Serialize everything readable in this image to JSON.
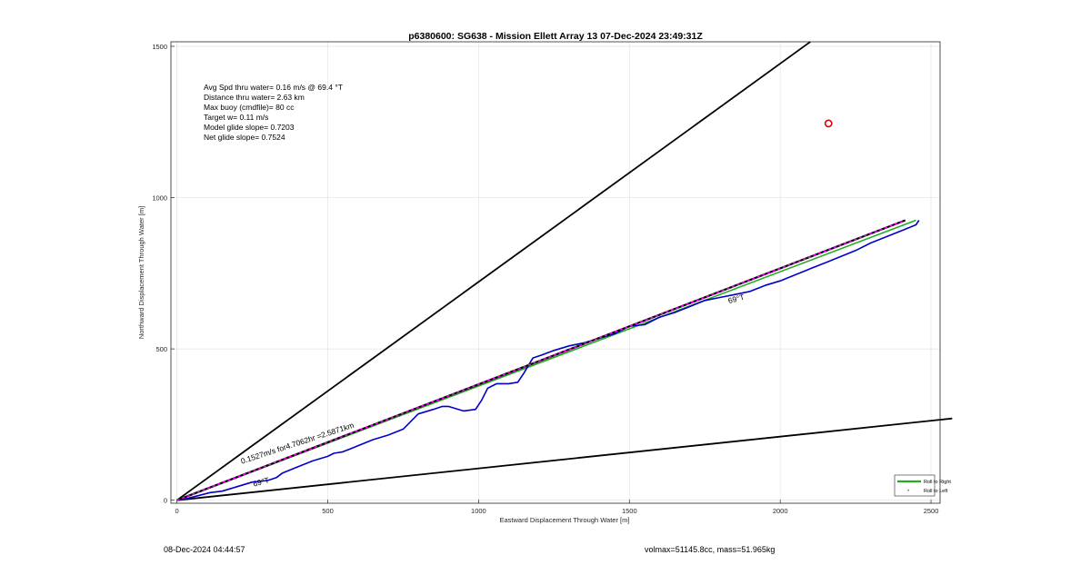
{
  "chart_data": {
    "type": "line",
    "title": "p6380600: SG638 - Mission Ellett Array 13 07-Dec-2024 23:49:31Z",
    "xlabel": "Eastward Displacement Through Water [m]",
    "ylabel": "Northward Displacement Through Water [m]",
    "xlim": [
      -20,
      2530
    ],
    "ylim": [
      -10,
      1515
    ],
    "xticks": [
      0,
      500,
      1000,
      1500,
      2000,
      2500
    ],
    "yticks": [
      0,
      500,
      1000,
      1500
    ],
    "grid": true,
    "legend": {
      "placement": "bottom-right",
      "entries": [
        "Roll to Right",
        "Roll to Left"
      ]
    },
    "stats_lines": [
      "Avg Spd thru water=  0.16 m/s @  69.4 °T",
      "Distance thru water=  2.63 km",
      "Max buoy (cmdfile)= 80 cc",
      "Target w= 0.11 m/s",
      "Model glide slope= 0.7203",
      "Net glide slope= 0.7524"
    ],
    "annotations": [
      {
        "text": "0.1527m/s for4.7062hr =2.5871km",
        "x": 215,
        "y": 120,
        "angle_deg": 18
      },
      {
        "text": "69°T",
        "x": 255,
        "y": 45,
        "angle_deg": 15
      },
      {
        "text": "69°T",
        "x": 1830,
        "y": 650,
        "angle_deg": 15
      }
    ],
    "series": [
      {
        "name": "Roll to Right",
        "color": "#22aa22",
        "x": [
          0,
          2450
        ],
        "y": [
          0,
          925
        ]
      },
      {
        "color": "#0000cc",
        "x": [
          0,
          30,
          70,
          110,
          150,
          200,
          250,
          300,
          330,
          350,
          400,
          450,
          500,
          520,
          550,
          600,
          650,
          700,
          750,
          800,
          850,
          880,
          900,
          950,
          990,
          1010,
          1030,
          1060,
          1100,
          1130,
          1150,
          1180,
          1210,
          1250,
          1300,
          1350,
          1400,
          1450,
          1480,
          1500,
          1550,
          1600,
          1650,
          1700,
          1750,
          1800,
          1850,
          1900,
          1950,
          2000,
          2050,
          2100,
          2150,
          2200,
          2250,
          2300,
          2350,
          2400,
          2450,
          2460
        ],
        "y": [
          0,
          5,
          15,
          25,
          30,
          45,
          60,
          65,
          75,
          90,
          110,
          130,
          145,
          155,
          160,
          180,
          200,
          215,
          235,
          285,
          300,
          310,
          310,
          295,
          300,
          330,
          370,
          385,
          385,
          390,
          420,
          470,
          480,
          495,
          510,
          520,
          535,
          550,
          565,
          575,
          580,
          605,
          620,
          640,
          660,
          670,
          680,
          690,
          710,
          725,
          745,
          765,
          785,
          805,
          825,
          850,
          870,
          890,
          910,
          925
        ]
      },
      {
        "name": "Roll to Left",
        "color": "#ff00ff",
        "dashed": true,
        "x": [
          0,
          2415
        ],
        "y": [
          0,
          925
        ]
      },
      {
        "color": "#000000",
        "x": [
          0,
          2100
        ],
        "y": [
          0,
          1515
        ]
      },
      {
        "color": "#000000",
        "x": [
          0,
          2570
        ],
        "y": [
          0,
          270
        ]
      }
    ],
    "marker": {
      "x": 2160,
      "y": 1245,
      "color": "#dd0000"
    }
  },
  "footer": {
    "left_text": "08-Dec-2024 04:44:57",
    "right_text": "volmax=51145.8cc, mass=51.965kg"
  }
}
